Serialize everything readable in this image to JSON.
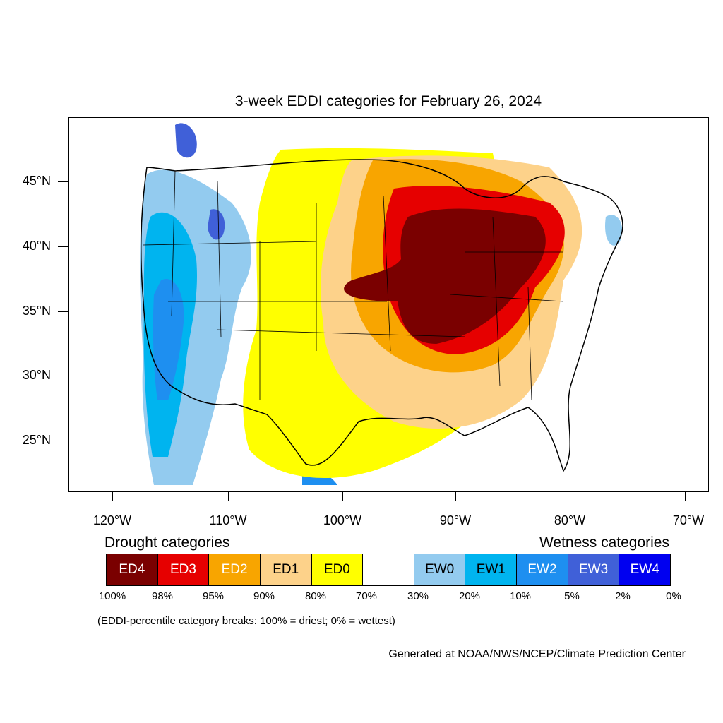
{
  "title": "3-week EDDI categories for February 26, 2024",
  "map": {
    "lat_ticks": [
      "45°N",
      "40°N",
      "35°N",
      "30°N",
      "25°N"
    ],
    "lon_ticks": [
      "120°W",
      "110°W",
      "100°W",
      "90°W",
      "80°W",
      "70°W"
    ]
  },
  "legend": {
    "drought_title": "Drought categories",
    "wetness_title": "Wetness categories",
    "categories": [
      {
        "label": "ED4",
        "color": "#7a0000",
        "text_color": "#ffffff"
      },
      {
        "label": "ED3",
        "color": "#e60000",
        "text_color": "#ffffff"
      },
      {
        "label": "ED2",
        "color": "#f8a500",
        "text_color": "#ffffff"
      },
      {
        "label": "ED1",
        "color": "#fdd28a",
        "text_color": "#000000"
      },
      {
        "label": "ED0",
        "color": "#ffff00",
        "text_color": "#000000"
      },
      {
        "label": "",
        "color": "#ffffff",
        "text_color": "#000000"
      },
      {
        "label": "EW0",
        "color": "#93cbef",
        "text_color": "#000000"
      },
      {
        "label": "EW1",
        "color": "#00b4ef",
        "text_color": "#000000"
      },
      {
        "label": "EW2",
        "color": "#1e8ff0",
        "text_color": "#ffffff"
      },
      {
        "label": "EW3",
        "color": "#4060d8",
        "text_color": "#ffffff"
      },
      {
        "label": "EW4",
        "color": "#0000f0",
        "text_color": "#ffffff"
      }
    ],
    "percentiles": [
      "100%",
      "98%",
      "95%",
      "90%",
      "80%",
      "70%",
      "30%",
      "20%",
      "10%",
      "5%",
      "2%",
      "0%"
    ]
  },
  "note": "(EDDI-percentile category breaks: 100% = driest; 0% = wettest)",
  "credit": "Generated at NOAA/NWS/NCEP/Climate Prediction Center"
}
